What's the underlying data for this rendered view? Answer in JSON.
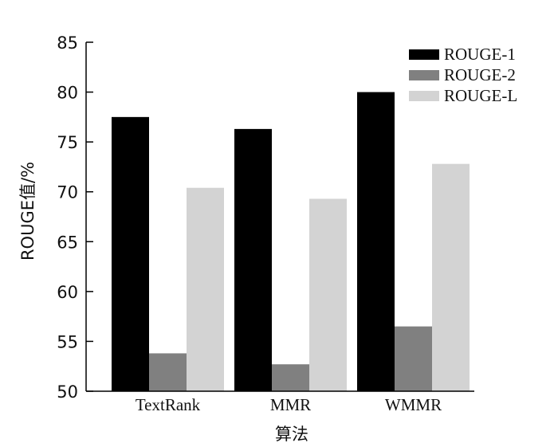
{
  "chart_data": {
    "type": "bar",
    "title": "",
    "xlabel": "算法",
    "ylabel": "ROUGE值/%",
    "categories": [
      "TextRank",
      "MMR",
      "WMMR"
    ],
    "series": [
      {
        "name": "ROUGE-1",
        "values": [
          77.5,
          76.3,
          80.0
        ],
        "color": "#000000"
      },
      {
        "name": "ROUGE-2",
        "values": [
          53.8,
          52.7,
          56.5
        ],
        "color": "#808080"
      },
      {
        "name": "ROUGE-L",
        "values": [
          70.4,
          69.3,
          72.8
        ],
        "color": "#d3d3d3"
      }
    ],
    "ylim": [
      50,
      85
    ],
    "yticks": [
      50,
      55,
      60,
      65,
      70,
      75,
      80,
      85
    ],
    "grid": false,
    "legend_position": "top-right"
  }
}
